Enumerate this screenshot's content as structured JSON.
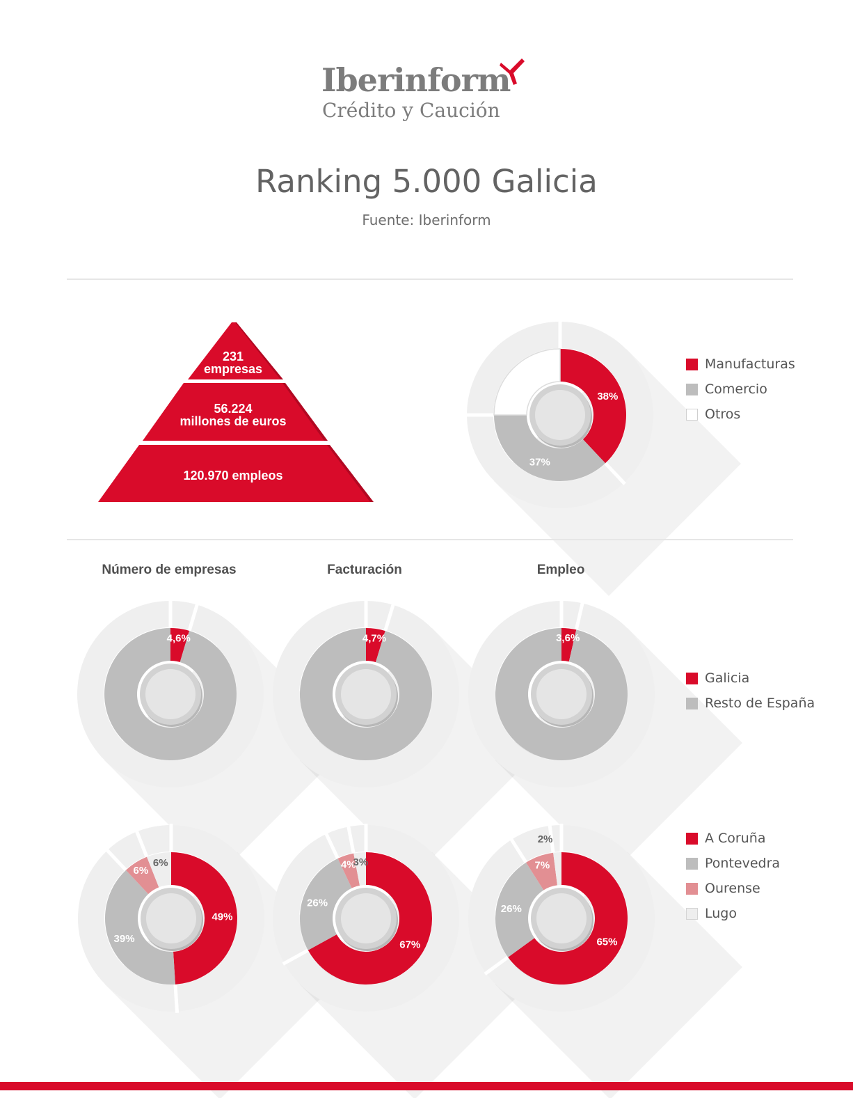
{
  "brand": {
    "name": "Iberinform",
    "tagline": "Crédito y Caución",
    "accent_color": "#d90b2a",
    "gray_color": "#bdbdbd",
    "light_color": "#eeeeee",
    "pink_color": "#e28f93"
  },
  "header": {
    "title": "Ranking 5.000 Galicia",
    "source": "Fuente: Iberinform"
  },
  "pyramid": {
    "tiers": [
      {
        "line1": "231",
        "line2": "empresas"
      },
      {
        "line1": "56.224",
        "line2": "millones de euros"
      },
      {
        "line1": "120.970 empleos",
        "line2": ""
      }
    ]
  },
  "sectors_legend": [
    {
      "label": "Manufacturas",
      "color": "#d90b2a"
    },
    {
      "label": "Comercio",
      "color": "#bdbdbd"
    },
    {
      "label": "Otros",
      "color": "#ffffff"
    }
  ],
  "share_legend": [
    {
      "label": "Galicia",
      "color": "#d90b2a"
    },
    {
      "label": "Resto de España",
      "color": "#bdbdbd"
    }
  ],
  "province_legend": [
    {
      "label": "A Coruña",
      "color": "#d90b2a"
    },
    {
      "label": "Pontevedra",
      "color": "#bdbdbd"
    },
    {
      "label": "Ourense",
      "color": "#e28f93"
    },
    {
      "label": "Lugo",
      "color": "#eeeeee"
    }
  ],
  "columns": [
    "Número de empresas",
    "Facturación",
    "Empleo"
  ],
  "chart_data": [
    {
      "type": "pie",
      "id": "sectors",
      "categories": [
        "Manufacturas",
        "Comercio",
        "Otros"
      ],
      "values": [
        38,
        37,
        25
      ],
      "labels": [
        "38%",
        "37%",
        ""
      ]
    },
    {
      "type": "pie",
      "id": "share-empresas",
      "categories": [
        "Galicia",
        "Resto de España"
      ],
      "values": [
        4.6,
        95.4
      ],
      "labels": [
        "4,6%",
        ""
      ]
    },
    {
      "type": "pie",
      "id": "share-facturacion",
      "categories": [
        "Galicia",
        "Resto de España"
      ],
      "values": [
        4.7,
        95.3
      ],
      "labels": [
        "4,7%",
        ""
      ]
    },
    {
      "type": "pie",
      "id": "share-empleo",
      "categories": [
        "Galicia",
        "Resto de España"
      ],
      "values": [
        3.6,
        96.4
      ],
      "labels": [
        "3,6%",
        ""
      ]
    },
    {
      "type": "pie",
      "id": "prov-empresas",
      "categories": [
        "A Coruña",
        "Pontevedra",
        "Ourense",
        "Lugo"
      ],
      "values": [
        49,
        39,
        6,
        6
      ],
      "labels": [
        "49%",
        "39%",
        "6%",
        "6%"
      ]
    },
    {
      "type": "pie",
      "id": "prov-facturacion",
      "categories": [
        "A Coruña",
        "Pontevedra",
        "Ourense",
        "Lugo"
      ],
      "values": [
        67,
        26,
        4,
        3
      ],
      "labels": [
        "67%",
        "26%",
        "4%",
        "3%"
      ]
    },
    {
      "type": "pie",
      "id": "prov-empleo",
      "categories": [
        "A Coruña",
        "Pontevedra",
        "Ourense",
        "Lugo"
      ],
      "values": [
        65,
        26,
        7,
        2
      ],
      "labels": [
        "65%",
        "26%",
        "7%",
        "2%"
      ]
    }
  ]
}
